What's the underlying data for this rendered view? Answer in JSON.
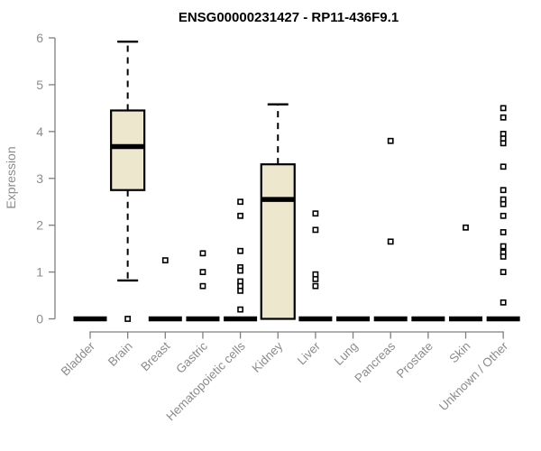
{
  "chart_data": {
    "type": "boxplot",
    "title": "ENSG00000231427 - RP11-436F9.1",
    "ylabel": "Expression",
    "ylim": [
      0,
      6
    ],
    "yticks": [
      0,
      1,
      2,
      3,
      4,
      5,
      6
    ],
    "grid": false,
    "legend": false,
    "categories": [
      "Bladder",
      "Brain",
      "Breast",
      "Gastric",
      "Hematopoietic cells",
      "Kidney",
      "Liver",
      "Lung",
      "Pancreas",
      "Prostate",
      "Skin",
      "Unknown / Other"
    ],
    "series": [
      {
        "name": "Bladder",
        "q1": 0,
        "median": 0,
        "q3": 0,
        "whisker_low": 0,
        "whisker_high": 0,
        "outliers": []
      },
      {
        "name": "Brain",
        "q1": 2.75,
        "median": 3.68,
        "q3": 4.45,
        "whisker_low": 0.82,
        "whisker_high": 5.92,
        "outliers": [
          0
        ]
      },
      {
        "name": "Breast",
        "q1": 0,
        "median": 0,
        "q3": 0,
        "whisker_low": 0,
        "whisker_high": 0,
        "outliers": [
          1.25
        ]
      },
      {
        "name": "Gastric",
        "q1": 0,
        "median": 0,
        "q3": 0,
        "whisker_low": 0,
        "whisker_high": 0,
        "outliers": [
          1.4,
          1.0,
          0.7
        ]
      },
      {
        "name": "Hematopoietic cells",
        "q1": 0,
        "median": 0,
        "q3": 0,
        "whisker_low": 0,
        "whisker_high": 0,
        "outliers": [
          2.5,
          2.2,
          1.45,
          1.1,
          1.03,
          0.8,
          0.7,
          0.6,
          0.2
        ]
      },
      {
        "name": "Kidney",
        "q1": 0,
        "median": 2.55,
        "q3": 3.3,
        "whisker_low": 0,
        "whisker_high": 4.58,
        "outliers": []
      },
      {
        "name": "Liver",
        "q1": 0,
        "median": 0,
        "q3": 0,
        "whisker_low": 0,
        "whisker_high": 0,
        "outliers": [
          2.25,
          1.9,
          0.95,
          0.85,
          0.7
        ]
      },
      {
        "name": "Lung",
        "q1": 0,
        "median": 0,
        "q3": 0,
        "whisker_low": 0,
        "whisker_high": 0,
        "outliers": []
      },
      {
        "name": "Pancreas",
        "q1": 0,
        "median": 0,
        "q3": 0,
        "whisker_low": 0,
        "whisker_high": 0,
        "outliers": [
          3.8,
          1.65
        ]
      },
      {
        "name": "Prostate",
        "q1": 0,
        "median": 0,
        "q3": 0,
        "whisker_low": 0,
        "whisker_high": 0,
        "outliers": []
      },
      {
        "name": "Skin",
        "q1": 0,
        "median": 0,
        "q3": 0,
        "whisker_low": 0,
        "whisker_high": 0,
        "outliers": [
          1.95
        ]
      },
      {
        "name": "Unknown / Other",
        "q1": 0,
        "median": 0,
        "q3": 0,
        "whisker_low": 0,
        "whisker_high": 0,
        "outliers": [
          4.5,
          4.3,
          3.95,
          3.85,
          3.75,
          3.25,
          2.75,
          2.55,
          2.45,
          2.2,
          1.85,
          1.55,
          1.42,
          1.33,
          1.0,
          0.35
        ]
      }
    ],
    "colors": {
      "box_fill": "#EDE7CD",
      "box_border": "#000000",
      "median": "#000000",
      "whisker": "#000000",
      "outlier_fill": "#ffffff",
      "axis": "#7f7f7f",
      "tick_label": "#8c8c8c",
      "title": "#000000",
      "background": "#ffffff"
    }
  }
}
